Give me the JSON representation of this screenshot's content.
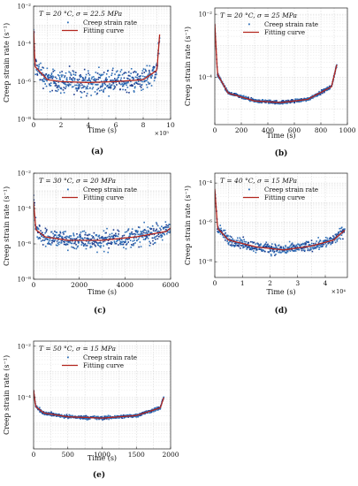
{
  "figure": {
    "marker_color": "#2f6fb7",
    "marker_dark": "#1d3d8f",
    "fit_color": "#b3261e",
    "legend_scatter": "Creep strain rate",
    "legend_fit": "Fitting curve"
  },
  "chart_data": [
    {
      "id": "a",
      "type": "scatter",
      "panel_label": "(a)",
      "title": "T = 20 °C, σ = 22.5 MPa",
      "xlabel": "Time (s)",
      "ylabel": "Creep strain rate (s⁻¹)",
      "x_multiplier": "×10⁵",
      "xlim": [
        0,
        10
      ],
      "ylim_log10": [
        -8,
        -2
      ],
      "yscale": "log",
      "grid": true,
      "legend": "top-right",
      "x_ticks": [
        0,
        2,
        4,
        6,
        8,
        10
      ],
      "y_ticks": [
        "10⁻⁸",
        "10⁻⁶",
        "10⁻⁴",
        "10⁻²"
      ],
      "series": [
        {
          "name": "Creep strain rate",
          "kind": "scatter",
          "x_end": 9.2,
          "log10_rate_start": -3.3,
          "log10_rate_min": -6.05,
          "log10_rate_end": -3.5,
          "scatter_spread": 0.9
        },
        {
          "name": "Fitting curve",
          "kind": "line",
          "x": [
            0.01,
            0.1,
            1,
            2,
            4,
            6,
            8,
            9,
            9.2
          ],
          "log10_rate": [
            -3.3,
            -5.2,
            -5.9,
            -6.0,
            -6.05,
            -6.0,
            -5.9,
            -5.4,
            -3.5
          ]
        }
      ]
    },
    {
      "id": "b",
      "type": "scatter",
      "panel_label": "(b)",
      "title": "T = 20 °C, σ = 25 MPa",
      "xlabel": "Time (s)",
      "ylabel": "Creep strain rate (s⁻¹)",
      "xlim": [
        0,
        1000
      ],
      "ylim_log10": [
        -5.5,
        -1.8
      ],
      "yscale": "log",
      "grid": true,
      "legend": "top-right",
      "x_ticks": [
        0,
        200,
        400,
        600,
        800,
        1000
      ],
      "y_ticks": [
        "10⁻⁴",
        "10⁻²"
      ],
      "series": [
        {
          "name": "Creep strain rate",
          "kind": "scatter",
          "x_end": 920,
          "log10_rate_start": -2.3,
          "log10_rate_min": -4.8,
          "log10_rate_end": -3.6,
          "scatter_spread": 0.08
        },
        {
          "name": "Fitting curve",
          "kind": "line",
          "x": [
            0,
            20,
            100,
            300,
            500,
            700,
            880,
            920
          ],
          "log10_rate": [
            -2.3,
            -3.9,
            -4.5,
            -4.75,
            -4.8,
            -4.7,
            -4.3,
            -3.6
          ]
        }
      ]
    },
    {
      "id": "c",
      "type": "scatter",
      "panel_label": "(c)",
      "title": "T = 30 °C, σ = 20 MPa",
      "xlabel": "Time (s)",
      "ylabel": "Creep strain rate (s⁻¹)",
      "xlim": [
        0,
        6000
      ],
      "ylim_log10": [
        -8,
        -2
      ],
      "yscale": "log",
      "grid": true,
      "legend": "top-right",
      "x_ticks": [
        0,
        2000,
        4000,
        6000
      ],
      "y_ticks": [
        "10⁻⁸",
        "10⁻⁶",
        "10⁻⁴",
        "10⁻²"
      ],
      "series": [
        {
          "name": "Creep strain rate",
          "kind": "scatter",
          "x_end": 6000,
          "log10_rate_start": -3.6,
          "log10_rate_min": -5.8,
          "log10_rate_end": -5.1,
          "scatter_spread": 0.8
        },
        {
          "name": "Fitting curve",
          "kind": "line",
          "x": [
            0,
            100,
            500,
            1500,
            3000,
            4500,
            5800,
            6000
          ],
          "log10_rate": [
            -3.6,
            -5.2,
            -5.6,
            -5.8,
            -5.8,
            -5.6,
            -5.3,
            -5.1
          ]
        }
      ]
    },
    {
      "id": "d",
      "type": "scatter",
      "panel_label": "(d)",
      "title": "T = 40 °C, σ = 15 MPa",
      "xlabel": "Time (s)",
      "ylabel": "Creep strain rate (s⁻¹)",
      "x_multiplier": "×10⁴",
      "xlim": [
        0,
        4.8
      ],
      "ylim_log10": [
        -8.8,
        -3.5
      ],
      "yscale": "log",
      "grid": true,
      "legend": "top-right",
      "x_ticks": [
        0,
        1,
        2,
        3,
        4
      ],
      "y_ticks": [
        "10⁻⁸",
        "10⁻⁶",
        "10⁻⁴"
      ],
      "series": [
        {
          "name": "Creep strain rate",
          "kind": "scatter",
          "x_end": 4.7,
          "log10_rate_start": -4.3,
          "log10_rate_min": -7.4,
          "log10_rate_end": -6.4,
          "scatter_spread": 0.4
        },
        {
          "name": "Fitting curve",
          "kind": "line",
          "x": [
            0,
            0.1,
            0.5,
            1.5,
            2.5,
            3.5,
            4.3,
            4.7
          ],
          "log10_rate": [
            -4.3,
            -6.3,
            -6.9,
            -7.25,
            -7.4,
            -7.2,
            -6.9,
            -6.4
          ]
        }
      ]
    },
    {
      "id": "e",
      "type": "scatter",
      "panel_label": "(e)",
      "title": "T = 50 °C, σ = 15 MPa",
      "xlabel": "Time (s)",
      "ylabel": "Creep strain rate (s⁻¹)",
      "xlim": [
        0,
        2000
      ],
      "ylim_log10": [
        -6,
        -1.8
      ],
      "yscale": "log",
      "grid": true,
      "legend": "top-right",
      "x_ticks": [
        0,
        500,
        1000,
        1500,
        2000
      ],
      "y_ticks": [
        "10⁻⁴",
        "10⁻²"
      ],
      "series": [
        {
          "name": "Creep strain rate",
          "kind": "scatter",
          "x_end": 1900,
          "log10_rate_start": -3.7,
          "log10_rate_min": -4.8,
          "log10_rate_end": -4.0,
          "scatter_spread": 0.1
        },
        {
          "name": "Fitting curve",
          "kind": "line",
          "x": [
            0,
            30,
            150,
            500,
            1000,
            1500,
            1850,
            1900
          ],
          "log10_rate": [
            -3.7,
            -4.35,
            -4.6,
            -4.75,
            -4.8,
            -4.7,
            -4.4,
            -4.0
          ]
        }
      ]
    }
  ]
}
